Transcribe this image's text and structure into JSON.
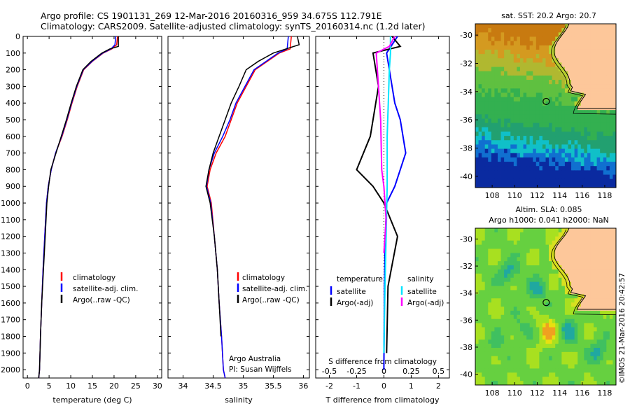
{
  "header": {
    "title_line1": "Argo profile: CS 1901131_269 12-Mar-2016 20160316_959 34.675S 112.791E",
    "title_line2": "Climatology: CARS2009. Satellite-adjusted climatology: synTS_20160314.nc (1.2d later)"
  },
  "colors": {
    "climatology": "#ff0000",
    "satellite": "#0000ff",
    "argo": "#000000",
    "salinity_satellite": "#00e5ff",
    "salinity_argo": "#ff00ff",
    "land": "#fdc79a"
  },
  "chart_data": [
    {
      "id": "temperature",
      "type": "line",
      "xlabel": "temperature (deg C)",
      "ylabel": "",
      "xlim": [
        -1,
        31
      ],
      "ylim": [
        0,
        2050
      ],
      "y_inverted": true,
      "xticks": [
        0,
        5,
        10,
        15,
        20,
        25,
        30
      ],
      "yticks": [
        0,
        100,
        200,
        300,
        400,
        500,
        600,
        700,
        800,
        900,
        1000,
        1100,
        1200,
        1300,
        1400,
        1500,
        1600,
        1700,
        1800,
        1900,
        2000
      ],
      "legend": [
        "climatology",
        "satellite-adj. clim.",
        "Argo(..raw -QC)"
      ],
      "legend_position": "lower-middle",
      "series": [
        {
          "name": "climatology",
          "x": [
            20.8,
            20.6,
            19.5,
            17.5,
            15.0,
            13.0,
            11.5,
            10.3,
            9.2,
            8.0,
            6.5,
            5.5,
            4.8,
            4.4,
            4.0,
            3.6,
            3.3,
            3.0,
            2.8,
            2.6
          ],
          "y": [
            0,
            50,
            75,
            100,
            150,
            200,
            300,
            400,
            500,
            600,
            700,
            800,
            900,
            1000,
            1200,
            1400,
            1600,
            1800,
            2000,
            2050
          ]
        },
        {
          "name": "satellite-adj. clim.",
          "x": [
            20.4,
            20.2,
            19.3,
            17.4,
            14.9,
            12.9,
            11.4,
            10.2,
            9.1,
            7.9,
            6.5,
            5.5,
            4.8,
            4.4,
            4.0,
            3.6,
            3.3,
            3.0,
            2.8,
            2.6
          ],
          "y": [
            0,
            50,
            75,
            100,
            150,
            200,
            300,
            400,
            500,
            600,
            700,
            800,
            900,
            1000,
            1200,
            1400,
            1600,
            1800,
            2000,
            2050
          ]
        },
        {
          "name": "Argo(..raw -QC)",
          "x": [
            21.0,
            21.0,
            19.0,
            17.2,
            14.7,
            12.8,
            11.3,
            10.1,
            9.0,
            7.8,
            6.6,
            5.4,
            4.9,
            4.5,
            4.1,
            3.7,
            3.3,
            3.0,
            2.8,
            2.6
          ],
          "y": [
            0,
            60,
            75,
            100,
            150,
            200,
            300,
            400,
            500,
            600,
            700,
            800,
            900,
            1000,
            1200,
            1400,
            1600,
            1800,
            2000,
            2050
          ]
        }
      ]
    },
    {
      "id": "salinity",
      "type": "line",
      "xlabel": "salinity",
      "ylabel": "",
      "xlim": [
        33.75,
        36.1
      ],
      "ylim": [
        0,
        2050
      ],
      "y_inverted": true,
      "xticks": [
        34,
        34.5,
        35,
        35.5,
        36
      ],
      "xtick_labels": [
        "34",
        "34.5",
        "35",
        "35.5",
        "36"
      ],
      "legend": [
        "climatology",
        "satellite-adj. clim.",
        "Argo(..raw -QC)"
      ],
      "legend_position": "lower-right",
      "annotation": [
        "Argo Australia",
        "PI: Susan Wijffels"
      ],
      "series": [
        {
          "name": "climatology",
          "x": [
            35.8,
            35.78,
            35.6,
            35.4,
            35.2,
            35.05,
            34.9,
            34.8,
            34.7,
            34.55,
            34.45,
            34.4,
            34.47,
            34.52,
            34.57,
            34.6,
            34.64,
            34.67,
            34.7
          ],
          "y": [
            0,
            75,
            100,
            150,
            200,
            300,
            400,
            500,
            600,
            700,
            800,
            900,
            1000,
            1200,
            1400,
            1600,
            1800,
            2000,
            2050
          ]
        },
        {
          "name": "satellite-adj. clim.",
          "x": [
            35.75,
            35.73,
            35.58,
            35.38,
            35.18,
            35.03,
            34.88,
            34.78,
            34.66,
            34.52,
            34.43,
            34.39,
            34.46,
            34.52,
            34.57,
            34.6,
            34.64,
            34.67,
            34.7
          ],
          "y": [
            0,
            75,
            100,
            150,
            200,
            300,
            400,
            500,
            600,
            700,
            800,
            900,
            1000,
            1200,
            1400,
            1600,
            1800,
            2000,
            2050
          ]
        },
        {
          "name": "Argo(..raw -QC)",
          "x": [
            35.9,
            35.93,
            35.5,
            35.25,
            35.05,
            34.93,
            34.8,
            34.7,
            34.6,
            34.5,
            34.43,
            34.38,
            34.45,
            34.52,
            34.57,
            34.6,
            34.63
          ],
          "y": [
            0,
            50,
            100,
            150,
            200,
            300,
            400,
            500,
            600,
            700,
            800,
            900,
            1000,
            1200,
            1400,
            1600,
            1800
          ]
        }
      ]
    },
    {
      "id": "differences",
      "type": "line",
      "xlabel": "T difference from climatology",
      "xlabel_top": "S difference from climatology",
      "xlim": [
        -2.5,
        2.4
      ],
      "ylim": [
        0,
        2050
      ],
      "y_inverted": true,
      "xticks": [
        -2,
        -1,
        0,
        1,
        2
      ],
      "xticks_top": [
        "-0.5",
        "-0.25",
        "0",
        "0.25",
        "0.5"
      ],
      "legend_groups": [
        {
          "title": "temperature",
          "entries": [
            "satellite",
            "Argo(-adj)"
          ]
        },
        {
          "title": "salinity",
          "entries": [
            "satellite",
            "Argo(-adj)"
          ]
        }
      ],
      "series": [
        {
          "name": "satellite",
          "group": "temperature",
          "x": [
            0.5,
            0.3,
            0.1,
            0.2,
            0.3,
            0.4,
            0.6,
            0.8,
            0.4,
            0.1,
            0.05,
            0.02,
            0.0
          ],
          "y": [
            0,
            50,
            100,
            200,
            300,
            400,
            500,
            700,
            900,
            1000,
            1200,
            1500,
            2000
          ]
        },
        {
          "name": "Argo(-adj)",
          "group": "temperature",
          "x": [
            0.3,
            0.6,
            -0.4,
            -0.3,
            -0.2,
            -0.3,
            -0.5,
            -1.0,
            -0.4,
            0.0,
            0.5,
            0.15,
            0.1
          ],
          "y": [
            0,
            60,
            100,
            200,
            300,
            400,
            600,
            800,
            900,
            1000,
            1200,
            1500,
            1900
          ]
        },
        {
          "name": "satellite",
          "group": "salinity",
          "x": [
            0.06,
            0.06,
            0.05,
            0.04,
            0.03,
            0.03,
            0.02,
            0.01,
            0.0
          ],
          "y": [
            0,
            100,
            200,
            400,
            600,
            900,
            1200,
            1500,
            1900
          ]
        },
        {
          "name": "Argo(-adj)",
          "group": "salinity",
          "x": [
            0.1,
            0.05,
            -0.07,
            -0.05,
            -0.03,
            -0.02,
            0.0,
            0.02,
            0.0
          ],
          "y": [
            0,
            60,
            100,
            300,
            500,
            800,
            900,
            1100,
            1300
          ]
        }
      ]
    },
    {
      "id": "sst-map",
      "type": "heatmap",
      "title": "sat. SST: 20.2  Argo: 20.7",
      "xticks": [
        108,
        110,
        112,
        114,
        116,
        118
      ],
      "yticks": [
        -30,
        -32,
        -34,
        -36,
        -38,
        -40
      ],
      "marker": {
        "lon": 112.8,
        "lat": -34.7
      }
    },
    {
      "id": "sla-map",
      "type": "heatmap",
      "title_line1": "Altim. SLA: 0.085",
      "title_line2": "Argo h1000: 0.041  h2000: NaN",
      "xticks": [
        108,
        110,
        112,
        114,
        116,
        118
      ],
      "yticks": [
        -30,
        -32,
        -34,
        -36,
        -38,
        -40
      ],
      "marker": {
        "lon": 112.8,
        "lat": -34.7
      }
    }
  ],
  "side_label": "©IMOS 21-Mar-2016 20:42:57"
}
